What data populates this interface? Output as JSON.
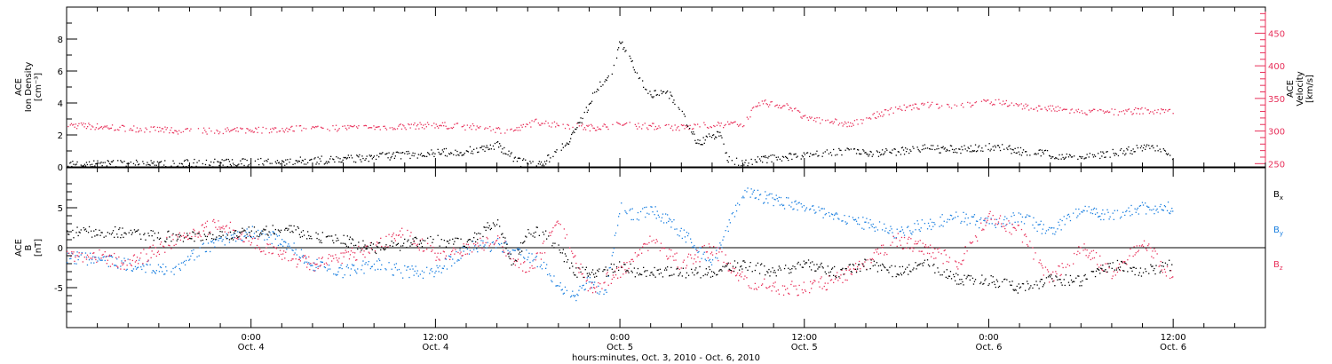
{
  "colors": {
    "black": "#000000",
    "density_color": "#000000",
    "velocity_color": "#e8305a",
    "bx": "#000000",
    "by": "#1a7fe0",
    "bz": "#e8305a"
  },
  "xaxis": {
    "title": "hours:minutes, Oct.  3, 2010 - Oct.  6, 2010",
    "range_hours": [
      0,
      78
    ],
    "ticks": [
      {
        "hour": 12,
        "time": "0:00",
        "date": "Oct. 4"
      },
      {
        "hour": 24,
        "time": "12:00",
        "date": "Oct. 4"
      },
      {
        "hour": 36,
        "time": "0:00",
        "date": "Oct. 5"
      },
      {
        "hour": 48,
        "time": "12:00",
        "date": "Oct. 5"
      },
      {
        "hour": 60,
        "time": "0:00",
        "date": "Oct. 6"
      },
      {
        "hour": 72,
        "time": "12:00",
        "date": "Oct. 6"
      }
    ]
  },
  "panel1": {
    "left_label": [
      "ACE",
      "Ion Density",
      "[cm⁻³]"
    ],
    "right_label": [
      "ACE",
      "Velocity",
      "[km/s]"
    ],
    "left_ticks": [
      "0",
      "2",
      "4",
      "6",
      "8"
    ],
    "right_ticks": [
      "250",
      "300",
      "350",
      "400",
      "450"
    ]
  },
  "panel2": {
    "left_label": [
      "ACE",
      "B",
      "[nT]"
    ],
    "left_ticks": [
      "-5",
      "0",
      "5"
    ],
    "legend": [
      {
        "label": "B",
        "sub": "x"
      },
      {
        "label": "B",
        "sub": "y"
      },
      {
        "label": "B",
        "sub": "z"
      }
    ]
  },
  "chart_data": [
    {
      "type": "scatter",
      "title": "",
      "xlabel": "hours:minutes, Oct.  3, 2010 - Oct.  6, 2010",
      "ylabel": "ACE Ion Density [cm⁻³]",
      "ylabel_right": "ACE Velocity [km/s]",
      "xlim": [
        0,
        78
      ],
      "ylim": [
        0,
        10
      ],
      "ylim_right": [
        245,
        490
      ],
      "series": [
        {
          "name": "Ion Density",
          "axis": "left",
          "x": [
            0,
            6,
            12,
            18,
            22,
            26,
            28,
            29.5,
            31,
            32.5,
            33.5,
            34.5,
            35.5,
            36,
            37,
            38,
            39,
            40,
            41,
            42,
            42.5,
            43,
            44,
            46,
            48,
            50,
            52,
            54,
            56,
            58,
            59.5,
            60.5,
            62,
            64,
            66,
            68,
            70,
            71,
            72
          ],
          "y": [
            0.2,
            0.25,
            0.3,
            0.5,
            0.8,
            1.0,
            1.4,
            0.3,
            0.3,
            1.5,
            3.0,
            5.0,
            6.0,
            8.0,
            6.0,
            4.5,
            4.8,
            3.5,
            1.5,
            2.0,
            2.0,
            0.5,
            0.3,
            0.6,
            0.8,
            1.0,
            0.9,
            1.0,
            1.2,
            1.1,
            1.2,
            1.3,
            1.0,
            0.8,
            0.6,
            0.9,
            1.2,
            1.3,
            0.6
          ]
        },
        {
          "name": "Velocity",
          "axis": "right",
          "x": [
            0,
            4,
            8,
            12,
            16,
            20,
            24,
            27,
            29,
            30.5,
            32,
            34,
            36,
            38,
            40,
            42,
            44,
            45,
            47,
            48,
            50,
            51,
            52,
            54,
            56,
            58,
            60,
            61,
            62,
            64,
            66,
            68,
            70,
            72
          ],
          "y": [
            310,
            305,
            300,
            302,
            305,
            306,
            310,
            306,
            300,
            315,
            310,
            306,
            310,
            308,
            306,
            310,
            312,
            345,
            338,
            320,
            315,
            310,
            320,
            335,
            340,
            340,
            345,
            345,
            338,
            335,
            330,
            330,
            332,
            330
          ]
        }
      ]
    },
    {
      "type": "scatter",
      "title": "",
      "xlabel": "hours:minutes, Oct.  3, 2010 - Oct.  6, 2010",
      "ylabel": "ACE B [nT]",
      "xlim": [
        0,
        78
      ],
      "ylim": [
        -10,
        10
      ],
      "series": [
        {
          "name": "Bx",
          "x": [
            0,
            2,
            4,
            6,
            8,
            10,
            12,
            14,
            16,
            18,
            20,
            22,
            24,
            26,
            27,
            28,
            29,
            30,
            31,
            32,
            33,
            34,
            35,
            36,
            37,
            38,
            40,
            42,
            44,
            46,
            48,
            50,
            52,
            54,
            56,
            58,
            60,
            62,
            64,
            66,
            68,
            70,
            72
          ],
          "y": [
            2,
            2,
            2,
            1.5,
            1.5,
            1.5,
            2,
            2.5,
            1.5,
            1,
            0,
            0.5,
            1,
            0.5,
            2,
            3.5,
            -2,
            2,
            2,
            0,
            -3,
            -3,
            -3,
            -2,
            -3,
            -3,
            -3,
            -3,
            -2,
            -3,
            -2,
            -3,
            -2,
            -3,
            -2,
            -4,
            -4,
            -5,
            -4,
            -4,
            -2,
            -3,
            -2
          ]
        },
        {
          "name": "By",
          "x": [
            0,
            2,
            4,
            6,
            7,
            8,
            10,
            12,
            14,
            16,
            18,
            20,
            22,
            24,
            26,
            28,
            30,
            31,
            32,
            33,
            34,
            35,
            36,
            37,
            38,
            40,
            42,
            44,
            46,
            48,
            50,
            52,
            54,
            56,
            58,
            60,
            62,
            64,
            66,
            68,
            70,
            72
          ],
          "y": [
            -1,
            -1.5,
            -2,
            -2.5,
            -2.5,
            -1,
            1,
            2,
            1,
            -2,
            -3,
            -2,
            -3,
            -3,
            0,
            0.5,
            -1,
            -2,
            -5,
            -6,
            -4,
            -6,
            5,
            4,
            5,
            2,
            -2,
            7,
            6,
            5,
            4,
            3,
            2,
            3,
            4,
            3,
            4,
            2,
            5,
            4,
            5,
            5
          ]
        },
        {
          "name": "Bz",
          "x": [
            0,
            2,
            4,
            6,
            8,
            10,
            12,
            14,
            16,
            18,
            20,
            22,
            24,
            26,
            28,
            30,
            32,
            34,
            36,
            38,
            40,
            42,
            44,
            46,
            48,
            50,
            52,
            54,
            56,
            58,
            60,
            62,
            64,
            66,
            68,
            70,
            72
          ],
          "y": [
            -1,
            -1,
            -2,
            0,
            2,
            3,
            1,
            -1,
            -2,
            -1,
            0,
            2,
            -1,
            0,
            1,
            -3,
            3,
            -5,
            -3,
            1,
            -2,
            0,
            -4,
            -5,
            -5,
            -4,
            -2,
            1,
            0,
            -2,
            4,
            2,
            -4,
            0,
            -3,
            1,
            -4
          ]
        }
      ],
      "legend_position": "right"
    }
  ]
}
